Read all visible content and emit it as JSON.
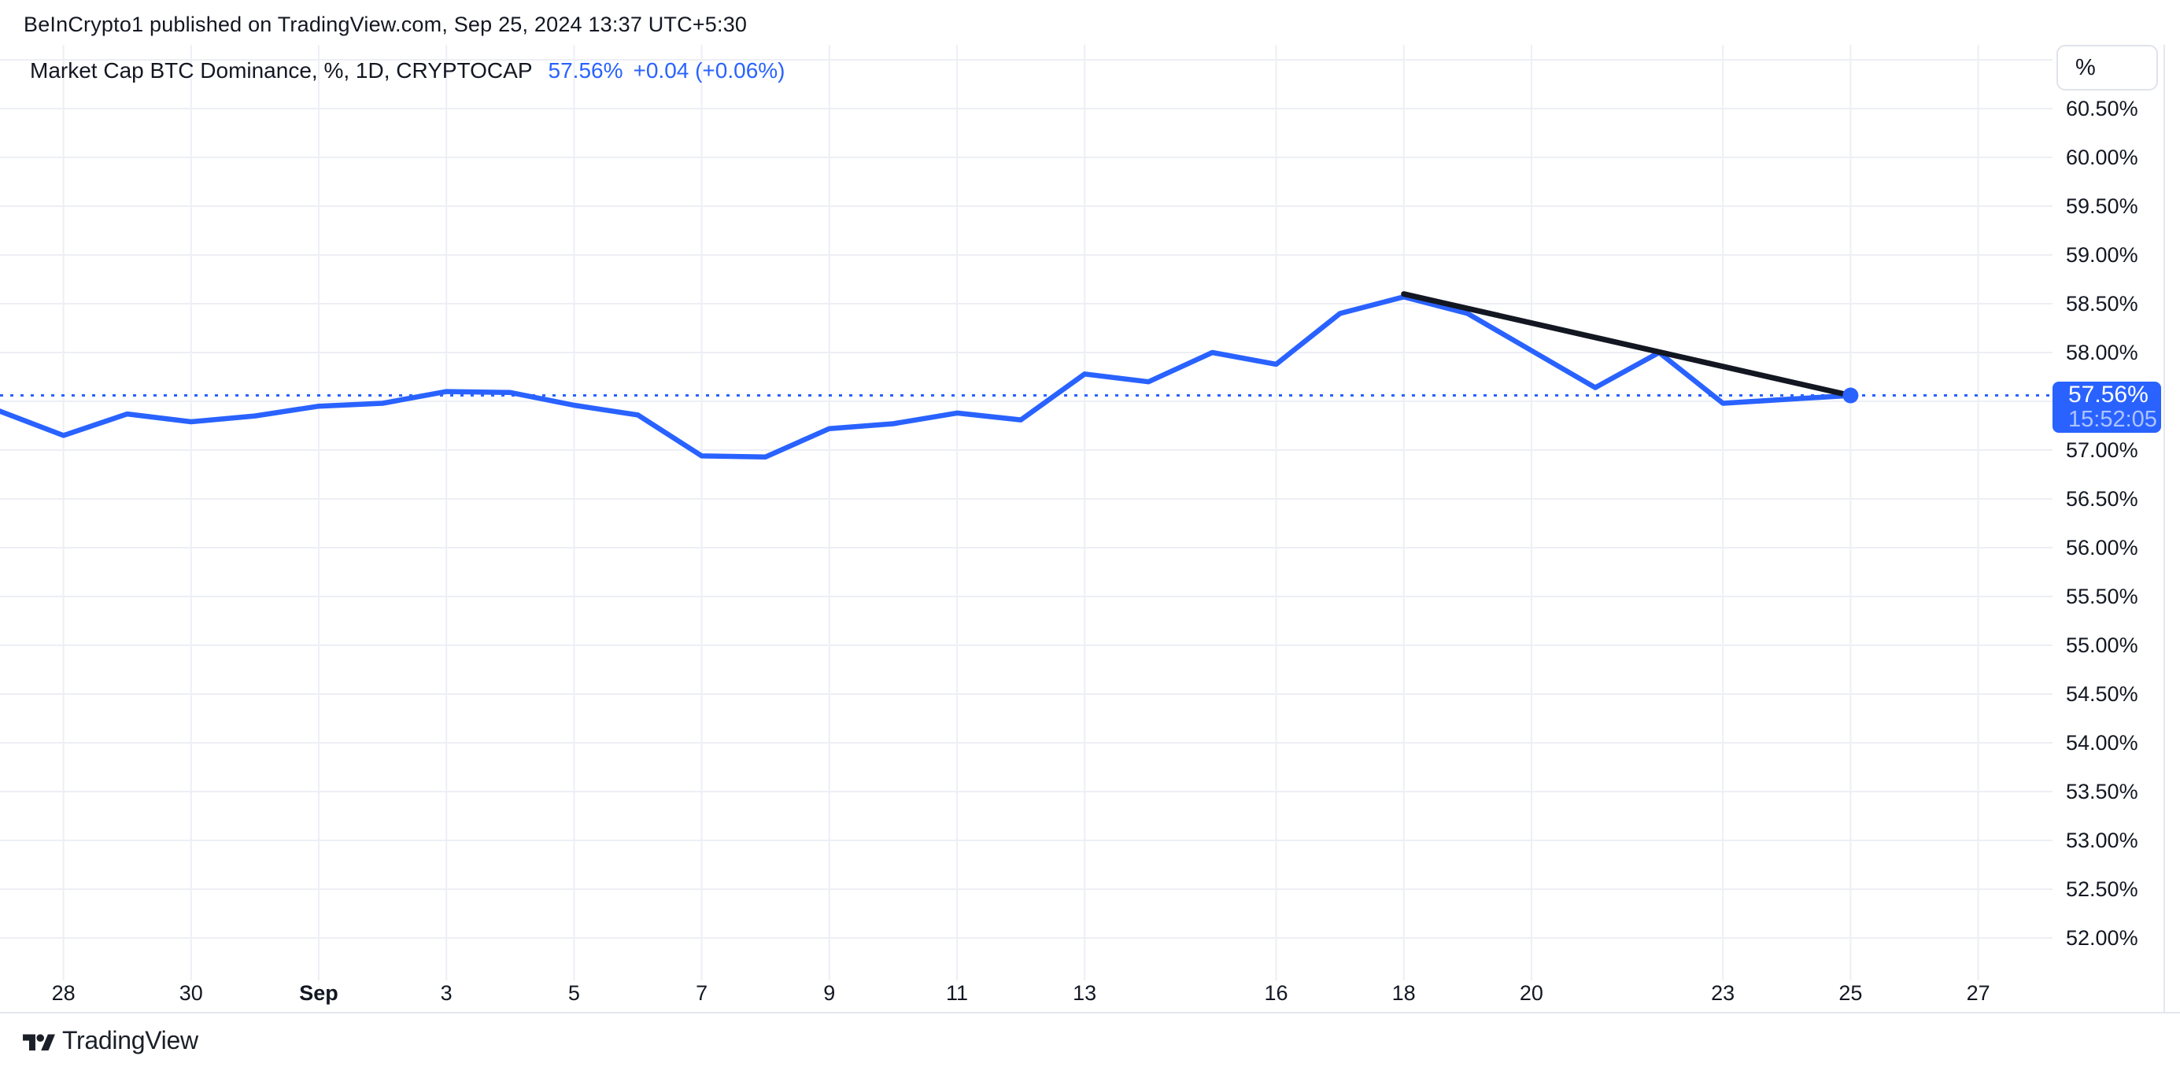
{
  "header": {
    "attribution": "BeInCrypto1 published on TradingView.com, Sep 25, 2024 13:37 UTC+5:30"
  },
  "legend": {
    "title": "Market Cap BTC Dominance, %, 1D, CRYPTOCAP",
    "price": "57.56%",
    "change": "+0.04 (+0.06%)"
  },
  "price_scale": {
    "unit_button": "%",
    "labels": [
      {
        "text": "60.50%",
        "value": 60.5
      },
      {
        "text": "60.00%",
        "value": 60.0
      },
      {
        "text": "59.50%",
        "value": 59.5
      },
      {
        "text": "59.00%",
        "value": 59.0
      },
      {
        "text": "58.50%",
        "value": 58.5
      },
      {
        "text": "58.00%",
        "value": 58.0
      },
      {
        "text": "57.00%",
        "value": 57.0
      },
      {
        "text": "56.50%",
        "value": 56.5
      },
      {
        "text": "56.00%",
        "value": 56.0
      },
      {
        "text": "55.50%",
        "value": 55.5
      },
      {
        "text": "55.00%",
        "value": 55.0
      },
      {
        "text": "54.50%",
        "value": 54.5
      },
      {
        "text": "54.00%",
        "value": 54.0
      },
      {
        "text": "53.50%",
        "value": 53.5
      },
      {
        "text": "53.00%",
        "value": 53.0
      },
      {
        "text": "52.50%",
        "value": 52.5
      },
      {
        "text": "52.00%",
        "value": 52.0
      }
    ],
    "last_price_label": {
      "price": "57.56%",
      "countdown": "15:52:05"
    }
  },
  "time_scale": {
    "labels": [
      {
        "text": "28",
        "day": -4,
        "bold": false
      },
      {
        "text": "30",
        "day": -2,
        "bold": false
      },
      {
        "text": "Sep",
        "day": 0,
        "bold": true
      },
      {
        "text": "3",
        "day": 2,
        "bold": false
      },
      {
        "text": "5",
        "day": 4,
        "bold": false
      },
      {
        "text": "7",
        "day": 6,
        "bold": false
      },
      {
        "text": "9",
        "day": 8,
        "bold": false
      },
      {
        "text": "11",
        "day": 10,
        "bold": false
      },
      {
        "text": "13",
        "day": 12,
        "bold": false
      },
      {
        "text": "16",
        "day": 15,
        "bold": false
      },
      {
        "text": "18",
        "day": 17,
        "bold": false
      },
      {
        "text": "20",
        "day": 19,
        "bold": false
      },
      {
        "text": "23",
        "day": 22,
        "bold": false
      },
      {
        "text": "25",
        "day": 24,
        "bold": false
      },
      {
        "text": "27",
        "day": 26,
        "bold": false
      }
    ]
  },
  "footer": {
    "brand": "TradingView"
  },
  "colors": {
    "accent": "#2962FF",
    "text": "#131722",
    "grid": "#EDEFF5",
    "border": "#E4E7EE",
    "trendline": "#131722",
    "label_bg": "#2962FF",
    "countdown_text": "rgba(255,255,255,0.62)"
  },
  "chart_data": {
    "type": "line",
    "title": "Market Cap BTC Dominance, %, 1D, CRYPTOCAP",
    "timeframe": "1D",
    "unit": "%",
    "x": [
      "Aug 27",
      "Aug 28",
      "Aug 29",
      "Aug 30",
      "Aug 31",
      "Sep 1",
      "Sep 2",
      "Sep 3",
      "Sep 4",
      "Sep 5",
      "Sep 6",
      "Sep 7",
      "Sep 8",
      "Sep 9",
      "Sep 10",
      "Sep 11",
      "Sep 12",
      "Sep 13",
      "Sep 14",
      "Sep 15",
      "Sep 16",
      "Sep 17",
      "Sep 18",
      "Sep 19",
      "Sep 20",
      "Sep 21",
      "Sep 22",
      "Sep 23",
      "Sep 24",
      "Sep 25"
    ],
    "day_offsets_from_sep1": [
      -5,
      -4,
      -3,
      -2,
      -1,
      0,
      1,
      2,
      3,
      4,
      5,
      6,
      7,
      8,
      9,
      10,
      11,
      12,
      13,
      14,
      15,
      16,
      17,
      18,
      19,
      20,
      21,
      22,
      23,
      24
    ],
    "values": [
      57.4,
      57.15,
      57.37,
      57.29,
      57.35,
      57.45,
      57.48,
      57.6,
      57.59,
      57.46,
      57.36,
      56.94,
      56.93,
      57.22,
      57.27,
      57.38,
      57.31,
      57.78,
      57.7,
      58.0,
      57.88,
      58.4,
      58.57,
      58.4,
      58.02,
      57.64,
      58.0,
      57.48,
      57.52,
      57.56
    ],
    "last_value": 57.56,
    "baseline": {
      "value": 57.56,
      "style": "dotted"
    },
    "trendline": {
      "x1": "Sep 18",
      "value1": 58.6,
      "x2": "Sep 25",
      "value2": 57.56
    },
    "y_axis": {
      "tick_step": 0.5,
      "tick_min": 52.0,
      "tick_max": 60.5,
      "visible_min": 51.6,
      "visible_max": 61.15
    },
    "grid": true,
    "legend_position": "top-left"
  }
}
